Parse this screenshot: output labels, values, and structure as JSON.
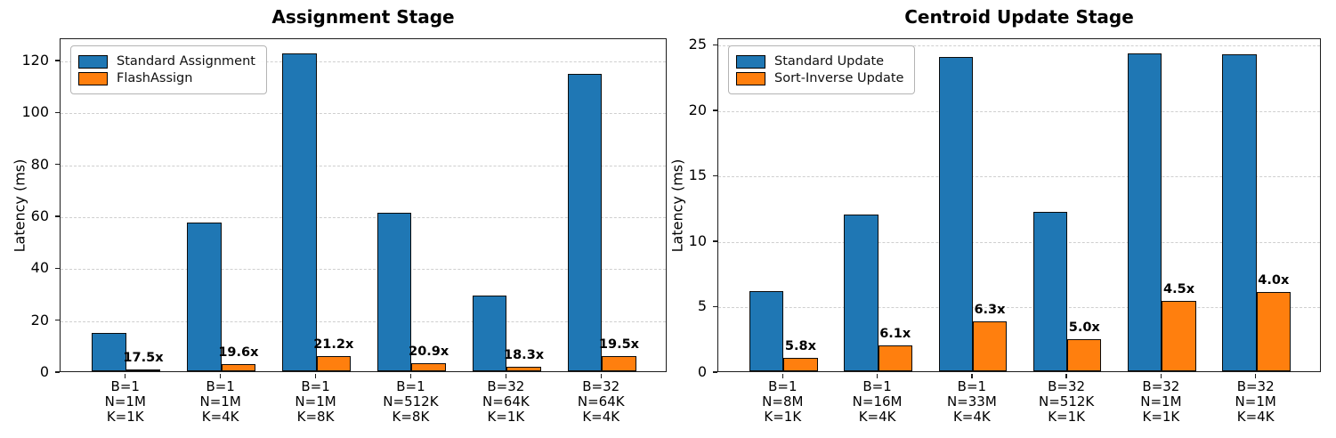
{
  "chart_data": [
    {
      "type": "bar",
      "title": "Assignment Stage",
      "xlabel": "",
      "ylabel": "Latency (ms)",
      "ylim": [
        0,
        128.6
      ],
      "yticks": [
        0,
        20,
        40,
        60,
        80,
        100,
        120
      ],
      "grid": "horizontal-dashed",
      "legend_position": "upper-left",
      "categories": [
        [
          "B=1",
          "N=1M",
          "K=1K"
        ],
        [
          "B=1",
          "N=1M",
          "K=4K"
        ],
        [
          "B=1",
          "N=1M",
          "K=8K"
        ],
        [
          "B=1",
          "N=512K",
          "K=8K"
        ],
        [
          "B=32",
          "N=64K",
          "K=1K"
        ],
        [
          "B=32",
          "N=64K",
          "K=4K"
        ]
      ],
      "series": [
        {
          "name": "Standard Assignment",
          "color": "#1f77b4",
          "values": [
            14.7,
            57.3,
            122.5,
            61.2,
            29.3,
            114.5
          ]
        },
        {
          "name": "FlashAssign",
          "color": "#ff7f0e",
          "values": [
            0.84,
            2.92,
            5.78,
            2.93,
            1.6,
            5.87
          ]
        }
      ],
      "speedup_labels": [
        "17.5x",
        "19.6x",
        "21.2x",
        "20.9x",
        "18.3x",
        "19.5x"
      ]
    },
    {
      "type": "bar",
      "title": "Centroid Update Stage",
      "xlabel": "",
      "ylabel": "Latency (ms)",
      "ylim": [
        0,
        25.5
      ],
      "yticks": [
        0,
        5,
        10,
        15,
        20,
        25
      ],
      "grid": "horizontal-dashed",
      "legend_position": "upper-left",
      "categories": [
        [
          "B=1",
          "N=8M",
          "K=1K"
        ],
        [
          "B=1",
          "N=16M",
          "K=4K"
        ],
        [
          "B=1",
          "N=33M",
          "K=4K"
        ],
        [
          "B=32",
          "N=512K",
          "K=1K"
        ],
        [
          "B=32",
          "N=1M",
          "K=1K"
        ],
        [
          "B=32",
          "N=1M",
          "K=4K"
        ]
      ],
      "series": [
        {
          "name": "Standard Update",
          "color": "#1f77b4",
          "values": [
            6.1,
            12.0,
            24.0,
            12.2,
            24.3,
            24.2
          ]
        },
        {
          "name": "Sort-Inverse Update",
          "color": "#ff7f0e",
          "values": [
            1.05,
            1.97,
            3.81,
            2.44,
            5.4,
            6.05
          ]
        }
      ],
      "speedup_labels": [
        "5.8x",
        "6.1x",
        "6.3x",
        "5.0x",
        "4.5x",
        "4.0x"
      ]
    }
  ]
}
